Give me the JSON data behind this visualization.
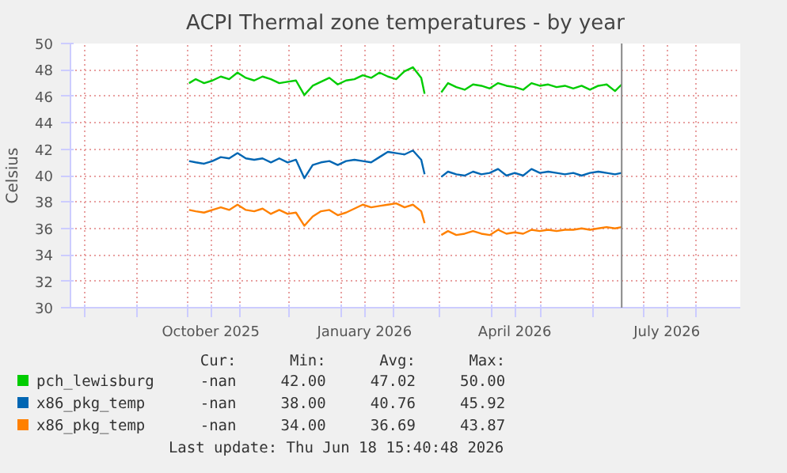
{
  "chart_data": {
    "type": "line",
    "title": "ACPI Thermal zone temperatures - by year",
    "ylabel": "Celsius",
    "x": [
      "2025-10-02",
      "2025-10-06",
      "2025-10-11",
      "2025-10-16",
      "2025-10-21",
      "2025-10-26",
      "2025-10-31",
      "2025-11-05",
      "2025-11-10",
      "2025-11-15",
      "2025-11-20",
      "2025-11-25",
      "2025-11-30",
      "2025-12-05",
      "2025-12-10",
      "2025-12-15",
      "2025-12-20",
      "2025-12-25",
      "2025-12-30",
      "2026-01-04",
      "2026-01-09",
      "2026-01-14",
      "2026-01-19",
      "2026-01-24",
      "2026-01-29",
      "2026-02-03",
      "2026-02-08",
      "2026-02-13",
      "2026-02-18",
      "2026-02-20",
      "2026-02-25",
      "2026-03-02",
      "2026-03-06",
      "2026-03-11",
      "2026-03-16",
      "2026-03-21",
      "2026-03-26",
      "2026-03-31",
      "2026-04-05",
      "2026-04-10",
      "2026-04-15",
      "2026-04-20",
      "2026-04-25",
      "2026-04-30",
      "2026-05-05",
      "2026-05-10",
      "2026-05-15",
      "2026-05-20",
      "2026-05-25",
      "2026-05-30",
      "2026-06-04",
      "2026-06-09",
      "2026-06-14",
      "2026-06-18"
    ],
    "series": [
      {
        "name": "pch_lewisburg",
        "color": "#00cc00",
        "values": [
          47.0,
          47.3,
          47.0,
          47.2,
          47.5,
          47.3,
          47.8,
          47.4,
          47.2,
          47.5,
          47.3,
          47.0,
          47.1,
          47.2,
          46.1,
          46.8,
          47.1,
          47.4,
          46.9,
          47.2,
          47.3,
          47.6,
          47.4,
          47.8,
          47.5,
          47.3,
          47.9,
          48.2,
          47.4,
          46.2,
          null,
          46.3,
          47.0,
          46.7,
          46.5,
          46.9,
          46.8,
          46.6,
          47.0,
          46.8,
          46.7,
          46.5,
          47.0,
          46.8,
          46.9,
          46.7,
          46.8,
          46.6,
          46.8,
          46.5,
          46.8,
          46.9,
          46.4,
          46.9
        ]
      },
      {
        "name": "x86_pkg_temp",
        "color": "#0066b3",
        "values": [
          41.1,
          41.0,
          40.9,
          41.1,
          41.4,
          41.3,
          41.7,
          41.3,
          41.2,
          41.3,
          41.0,
          41.3,
          41.0,
          41.2,
          39.8,
          40.8,
          41.0,
          41.1,
          40.8,
          41.1,
          41.2,
          41.1,
          41.0,
          41.4,
          41.8,
          41.7,
          41.6,
          41.9,
          41.2,
          40.1,
          null,
          39.9,
          40.3,
          40.1,
          40.0,
          40.3,
          40.1,
          40.2,
          40.5,
          40.0,
          40.2,
          40.0,
          40.5,
          40.2,
          40.3,
          40.2,
          40.1,
          40.2,
          40.0,
          40.2,
          40.3,
          40.2,
          40.1,
          40.2
        ]
      },
      {
        "name": "x86_pkg_temp",
        "color": "#ff8000",
        "values": [
          37.4,
          37.3,
          37.2,
          37.4,
          37.6,
          37.4,
          37.8,
          37.4,
          37.3,
          37.5,
          37.1,
          37.4,
          37.1,
          37.2,
          36.2,
          36.9,
          37.3,
          37.4,
          37.0,
          37.2,
          37.5,
          37.8,
          37.6,
          37.7,
          37.8,
          37.9,
          37.6,
          37.8,
          37.3,
          36.4,
          null,
          35.5,
          35.8,
          35.5,
          35.6,
          35.8,
          35.6,
          35.5,
          35.9,
          35.6,
          35.7,
          35.6,
          35.9,
          35.8,
          35.9,
          35.8,
          35.9,
          35.9,
          36.0,
          35.9,
          36.0,
          36.1,
          36.0,
          36.1
        ]
      }
    ],
    "xlim": [
      "2025-07-23",
      "2026-08-28"
    ],
    "xticks": [
      {
        "value": "2025-08-01",
        "label": null
      },
      {
        "value": "2025-09-01",
        "label": null
      },
      {
        "value": "2025-10-01",
        "label": null
      },
      {
        "value": "2025-10-15",
        "label": "October 2025"
      },
      {
        "value": "2025-11-01",
        "label": null
      },
      {
        "value": "2025-12-01",
        "label": null
      },
      {
        "value": "2026-01-01",
        "label": null
      },
      {
        "value": "2026-01-15",
        "label": "January 2026"
      },
      {
        "value": "2026-02-01",
        "label": null
      },
      {
        "value": "2026-03-01",
        "label": null
      },
      {
        "value": "2026-04-01",
        "label": null
      },
      {
        "value": "2026-04-15",
        "label": "April 2026"
      },
      {
        "value": "2026-05-01",
        "label": null
      },
      {
        "value": "2026-06-01",
        "label": null
      },
      {
        "value": "2026-07-01",
        "label": null
      },
      {
        "value": "2026-07-15",
        "label": "July 2026"
      },
      {
        "value": "2026-08-01",
        "label": null
      }
    ],
    "ylim": [
      30,
      50
    ],
    "yticks": [
      30,
      32,
      34,
      36,
      38,
      40,
      42,
      44,
      46,
      48,
      50
    ],
    "grid": true,
    "legend": "bottom",
    "line_style": "solid",
    "ref_lines": [
      {
        "axis": "x",
        "value": "2026-06-18",
        "color": "#888888"
      }
    ],
    "annotations": [
      "Cur:",
      "Min:",
      "Avg:",
      "Max:",
      "-nan",
      "42.00",
      "47.02",
      "50.00",
      "-nan",
      "38.00",
      "40.76",
      "45.92",
      "-nan",
      "34.00",
      "36.69",
      "43.87",
      "Last update: Thu Jun 18 15:40:48 2026"
    ]
  }
}
